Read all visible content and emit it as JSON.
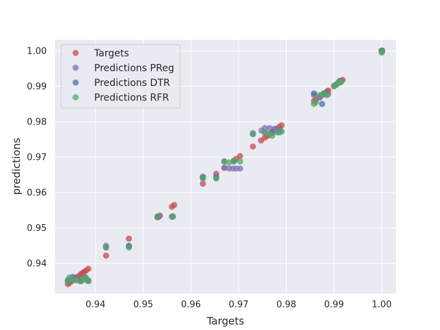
{
  "chart_data": {
    "type": "scatter",
    "title": "",
    "xlabel": "Targets",
    "ylabel": "predictions",
    "xlim": [
      0.9315,
      1.003
    ],
    "ylim": [
      0.9315,
      1.0031
    ],
    "xticks": [
      0.94,
      0.95,
      0.96,
      0.97,
      0.98,
      0.99,
      1.0
    ],
    "xtick_labels": [
      "0.94",
      "0.95",
      "0.96",
      "0.97",
      "0.98",
      "0.99",
      "1.00"
    ],
    "yticks": [
      0.94,
      0.95,
      0.96,
      0.97,
      0.98,
      0.99,
      1.0
    ],
    "ytick_labels": [
      "0.94",
      "0.95",
      "0.96",
      "0.97",
      "0.98",
      "0.99",
      "1.00"
    ],
    "grid": true,
    "legend_position": "top-left",
    "series": [
      {
        "name": "Targets",
        "color": "#c44e52",
        "points": [
          [
            0.9342,
            0.9342
          ],
          [
            0.9345,
            0.9345
          ],
          [
            0.935,
            0.935
          ],
          [
            0.9355,
            0.9355
          ],
          [
            0.936,
            0.936
          ],
          [
            0.9365,
            0.9365
          ],
          [
            0.937,
            0.937
          ],
          [
            0.9373,
            0.9373
          ],
          [
            0.9376,
            0.9376
          ],
          [
            0.938,
            0.938
          ],
          [
            0.9385,
            0.9385
          ],
          [
            0.9422,
            0.9422
          ],
          [
            0.947,
            0.947
          ],
          [
            0.953,
            0.953
          ],
          [
            0.9535,
            0.9535
          ],
          [
            0.956,
            0.956
          ],
          [
            0.9565,
            0.9565
          ],
          [
            0.9625,
            0.9625
          ],
          [
            0.9653,
            0.9653
          ],
          [
            0.967,
            0.967
          ],
          [
            0.969,
            0.969
          ],
          [
            0.9695,
            0.9695
          ],
          [
            0.9703,
            0.9703
          ],
          [
            0.973,
            0.973
          ],
          [
            0.9747,
            0.9747
          ],
          [
            0.9755,
            0.9755
          ],
          [
            0.976,
            0.976
          ],
          [
            0.9765,
            0.9765
          ],
          [
            0.977,
            0.977
          ],
          [
            0.9775,
            0.9775
          ],
          [
            0.978,
            0.978
          ],
          [
            0.9785,
            0.9785
          ],
          [
            0.979,
            0.979
          ],
          [
            0.9858,
            0.9858
          ],
          [
            0.9862,
            0.9862
          ],
          [
            0.987,
            0.987
          ],
          [
            0.9875,
            0.9875
          ],
          [
            0.988,
            0.988
          ],
          [
            0.9885,
            0.9885
          ],
          [
            0.9888,
            0.9888
          ],
          [
            0.99,
            0.99
          ],
          [
            0.9905,
            0.9905
          ],
          [
            0.991,
            0.991
          ],
          [
            0.9915,
            0.9915
          ],
          [
            0.9918,
            0.9918
          ],
          [
            1.0,
            1.0
          ],
          [
            1.0001,
            1.0001
          ]
        ]
      },
      {
        "name": "Predictions PReg",
        "color": "#8172b3",
        "points": [
          [
            0.9342,
            0.9352
          ],
          [
            0.935,
            0.9355
          ],
          [
            0.9358,
            0.936
          ],
          [
            0.9368,
            0.935
          ],
          [
            0.9378,
            0.936
          ],
          [
            0.9382,
            0.9352
          ],
          [
            0.9422,
            0.945
          ],
          [
            0.947,
            0.945
          ],
          [
            0.953,
            0.9532
          ],
          [
            0.956,
            0.9532
          ],
          [
            0.9625,
            0.9645
          ],
          [
            0.9653,
            0.9645
          ],
          [
            0.967,
            0.967
          ],
          [
            0.968,
            0.9668
          ],
          [
            0.9688,
            0.9668
          ],
          [
            0.9695,
            0.9668
          ],
          [
            0.9703,
            0.9668
          ],
          [
            0.9748,
            0.9775
          ],
          [
            0.9755,
            0.9782
          ],
          [
            0.9765,
            0.9782
          ],
          [
            0.9775,
            0.978
          ],
          [
            0.9782,
            0.978
          ],
          [
            0.9788,
            0.9775
          ],
          [
            0.9858,
            0.9875
          ],
          [
            0.987,
            0.9868
          ],
          [
            0.988,
            0.9878
          ],
          [
            0.9888,
            0.9878
          ],
          [
            0.9905,
            0.9905
          ],
          [
            0.9912,
            0.9912
          ],
          [
            1.0,
            1.0
          ]
        ]
      },
      {
        "name": "Predictions DTR",
        "color": "#4c72b0",
        "points": [
          [
            0.9342,
            0.9352
          ],
          [
            0.9352,
            0.9362
          ],
          [
            0.9368,
            0.9352
          ],
          [
            0.9378,
            0.936
          ],
          [
            0.9385,
            0.9352
          ],
          [
            0.9422,
            0.9445
          ],
          [
            0.947,
            0.9448
          ],
          [
            0.9532,
            0.9532
          ],
          [
            0.9562,
            0.9532
          ],
          [
            0.9625,
            0.9642
          ],
          [
            0.9653,
            0.9642
          ],
          [
            0.967,
            0.9688
          ],
          [
            0.969,
            0.9688
          ],
          [
            0.973,
            0.9765
          ],
          [
            0.9755,
            0.977
          ],
          [
            0.977,
            0.9768
          ],
          [
            0.9785,
            0.977
          ],
          [
            0.9858,
            0.988
          ],
          [
            0.9875,
            0.985
          ],
          [
            0.988,
            0.988
          ],
          [
            0.9905,
            0.9905
          ],
          [
            0.9912,
            0.9915
          ],
          [
            1.0,
            1.0
          ]
        ]
      },
      {
        "name": "Predictions RFR",
        "color": "#55a868",
        "points": [
          [
            0.9342,
            0.9348
          ],
          [
            0.9345,
            0.936
          ],
          [
            0.935,
            0.9358
          ],
          [
            0.936,
            0.9352
          ],
          [
            0.937,
            0.935
          ],
          [
            0.9375,
            0.9355
          ],
          [
            0.938,
            0.936
          ],
          [
            0.9385,
            0.935
          ],
          [
            0.9422,
            0.9445
          ],
          [
            0.947,
            0.9445
          ],
          [
            0.953,
            0.9533
          ],
          [
            0.9562,
            0.9533
          ],
          [
            0.9625,
            0.964
          ],
          [
            0.9653,
            0.964
          ],
          [
            0.967,
            0.9688
          ],
          [
            0.968,
            0.9685
          ],
          [
            0.969,
            0.969
          ],
          [
            0.9703,
            0.9688
          ],
          [
            0.973,
            0.9768
          ],
          [
            0.9755,
            0.977
          ],
          [
            0.9765,
            0.9765
          ],
          [
            0.977,
            0.976
          ],
          [
            0.978,
            0.977
          ],
          [
            0.979,
            0.9772
          ],
          [
            0.9858,
            0.985
          ],
          [
            0.9862,
            0.9855
          ],
          [
            0.987,
            0.9875
          ],
          [
            0.9878,
            0.988
          ],
          [
            0.9885,
            0.9875
          ],
          [
            0.99,
            0.9902
          ],
          [
            0.9905,
            0.9905
          ],
          [
            0.991,
            0.9912
          ],
          [
            0.9915,
            0.9912
          ],
          [
            1.0,
            0.9995
          ],
          [
            1.0001,
            0.9998
          ]
        ]
      }
    ]
  }
}
